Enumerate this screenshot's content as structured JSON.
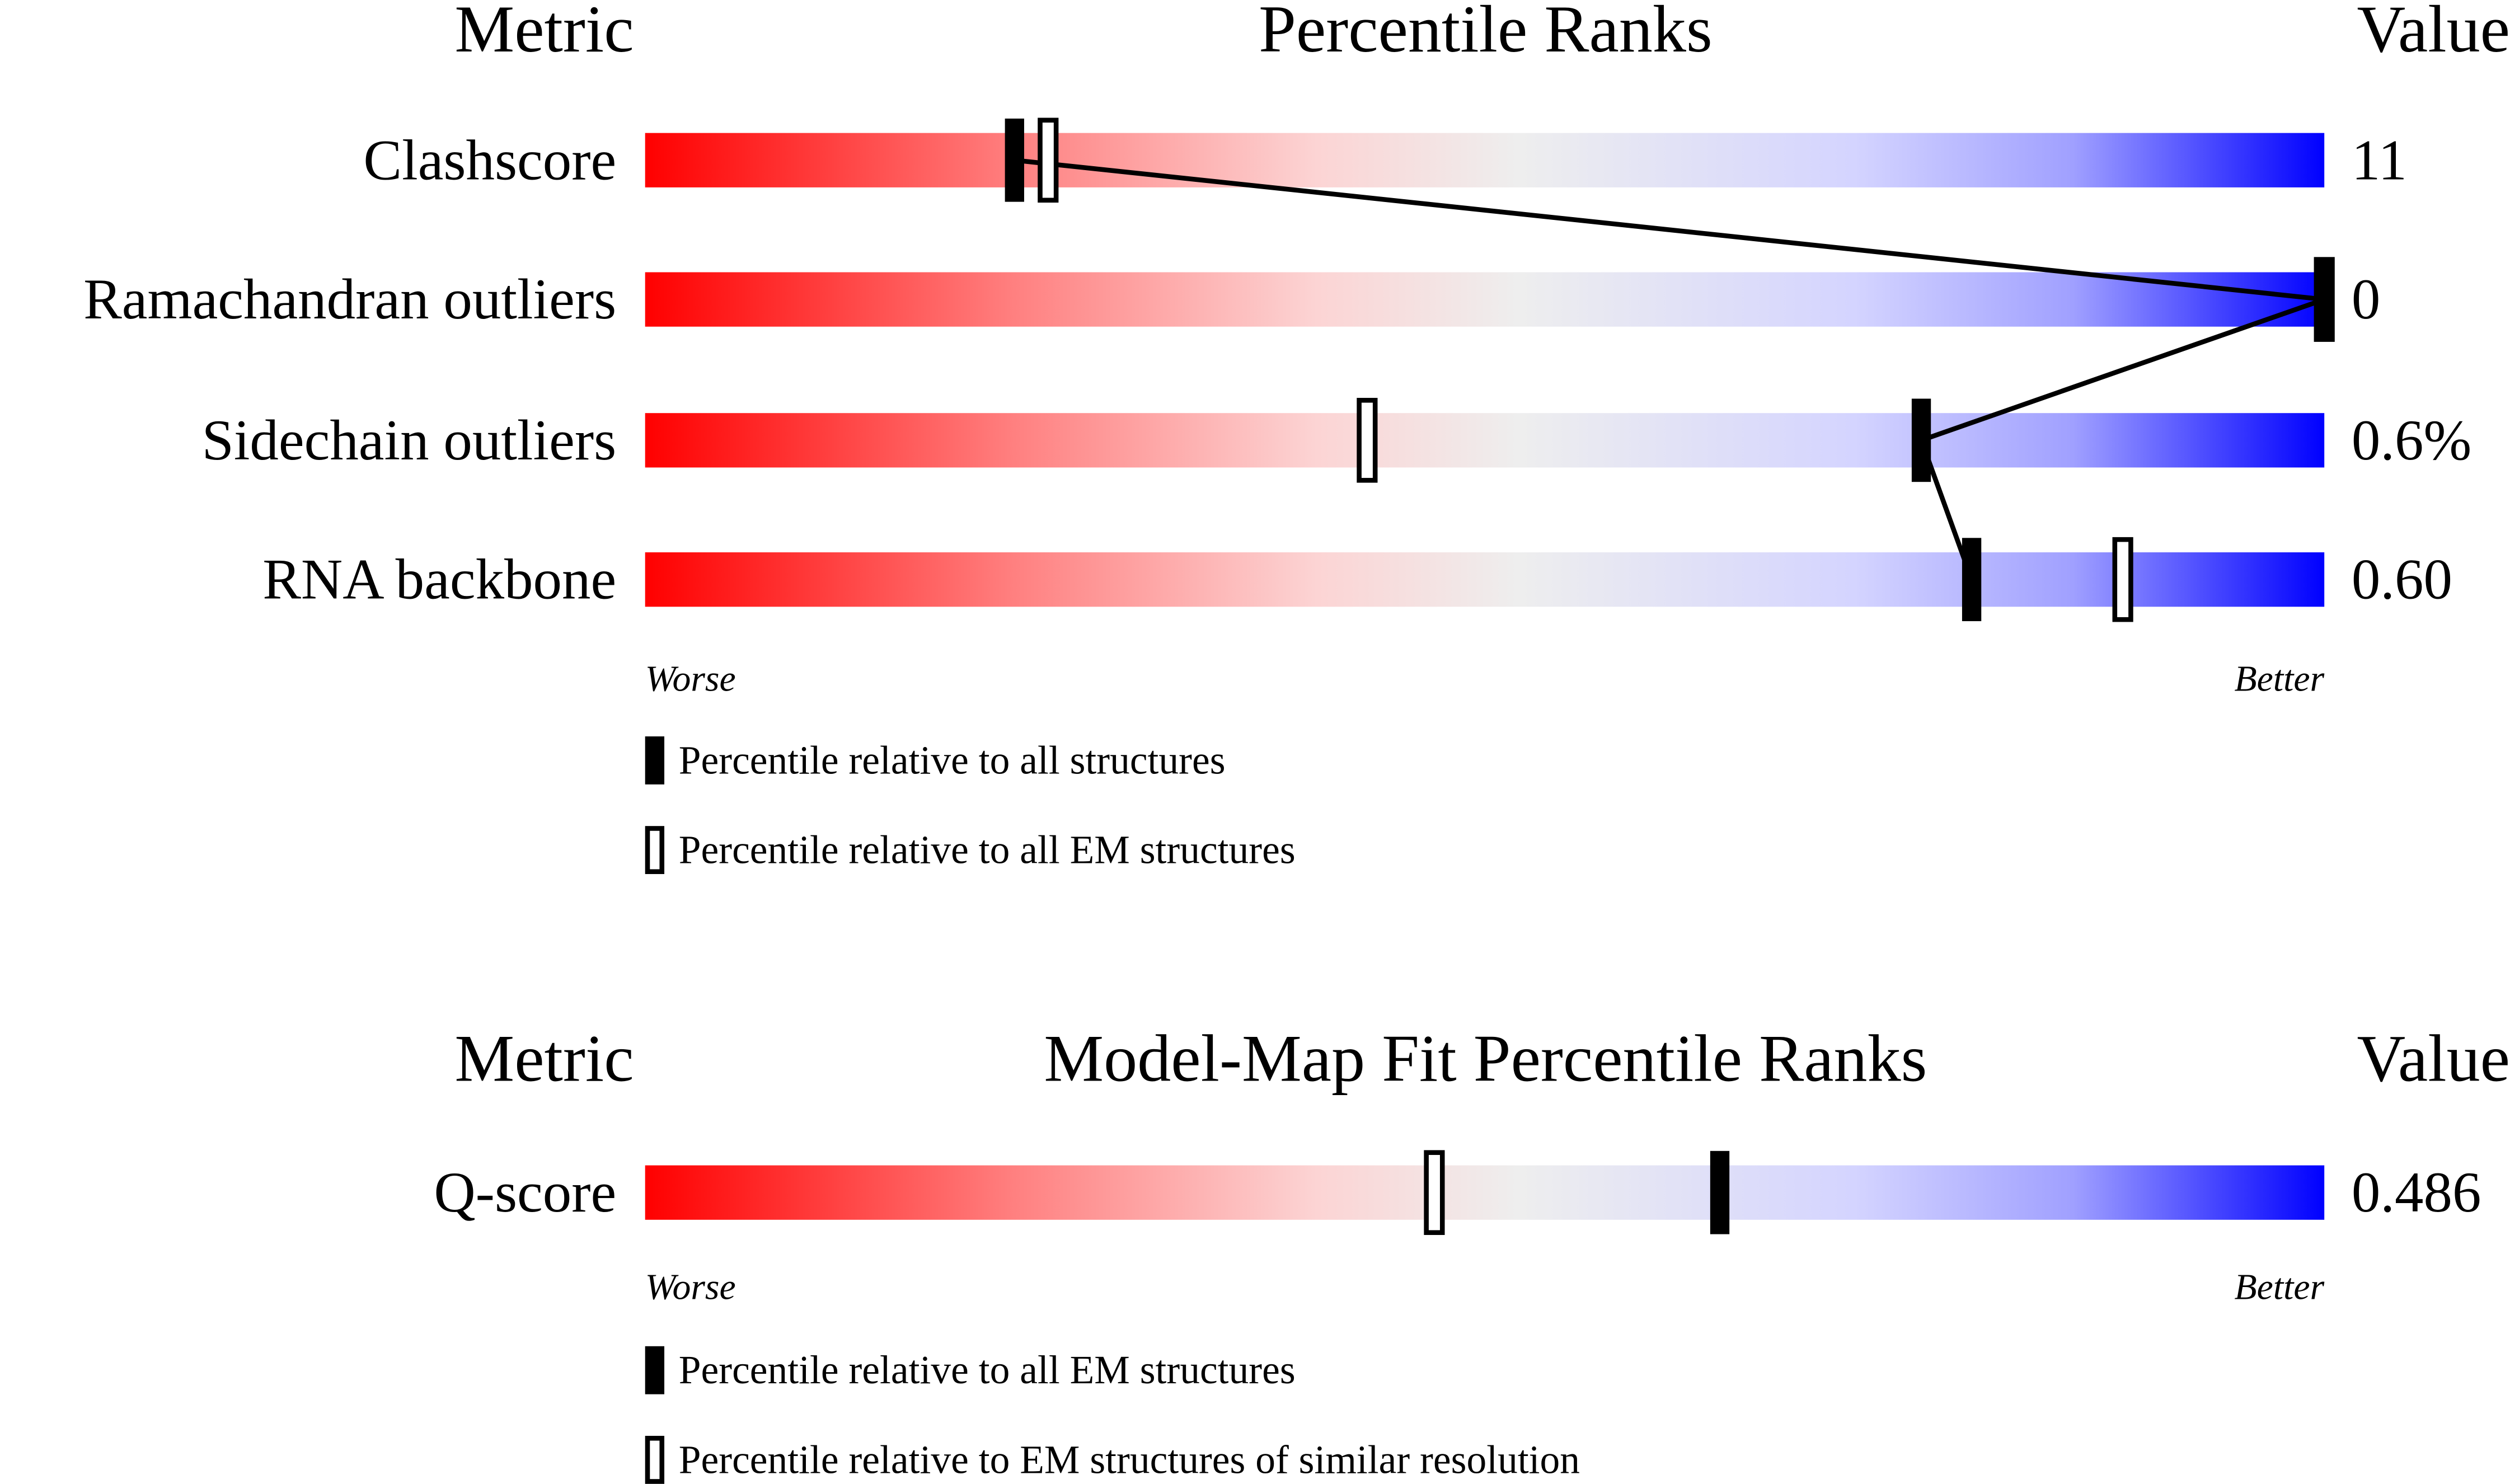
{
  "chart_data": [
    {
      "type": "slider",
      "metric_header": "Metric",
      "title": "Percentile Ranks",
      "value_header": "Value",
      "categories": [
        "Clashscore",
        "Ramachandran outliers",
        "Sidechain outliers",
        "RNA backbone"
      ],
      "value_labels": [
        "11",
        "0",
        "0.6%",
        "0.60"
      ],
      "series": [
        {
          "name": "Percentile relative to all structures",
          "style": "filled",
          "color": "#000000",
          "values": [
            22,
            100,
            76,
            79
          ]
        },
        {
          "name": "Percentile relative to all EM structures",
          "style": "hollow",
          "color": "#000000",
          "values": [
            24,
            100,
            43,
            88
          ]
        }
      ],
      "connect_series": 0,
      "xlim": [
        0,
        100
      ],
      "x_start_label": "Worse",
      "x_end_label": "Better"
    },
    {
      "type": "slider",
      "metric_header": "Metric",
      "title": "Model-Map Fit Percentile Ranks",
      "value_header": "Value",
      "categories": [
        "Q-score"
      ],
      "value_labels": [
        "0.486"
      ],
      "series": [
        {
          "name": "Percentile relative to all EM structures",
          "style": "filled",
          "color": "#000000",
          "values": [
            64
          ]
        },
        {
          "name": "Percentile relative to EM structures of similar resolution",
          "style": "hollow",
          "color": "#000000",
          "values": [
            47
          ]
        }
      ],
      "xlim": [
        0,
        100
      ],
      "x_start_label": "Worse",
      "x_end_label": "Better"
    }
  ]
}
